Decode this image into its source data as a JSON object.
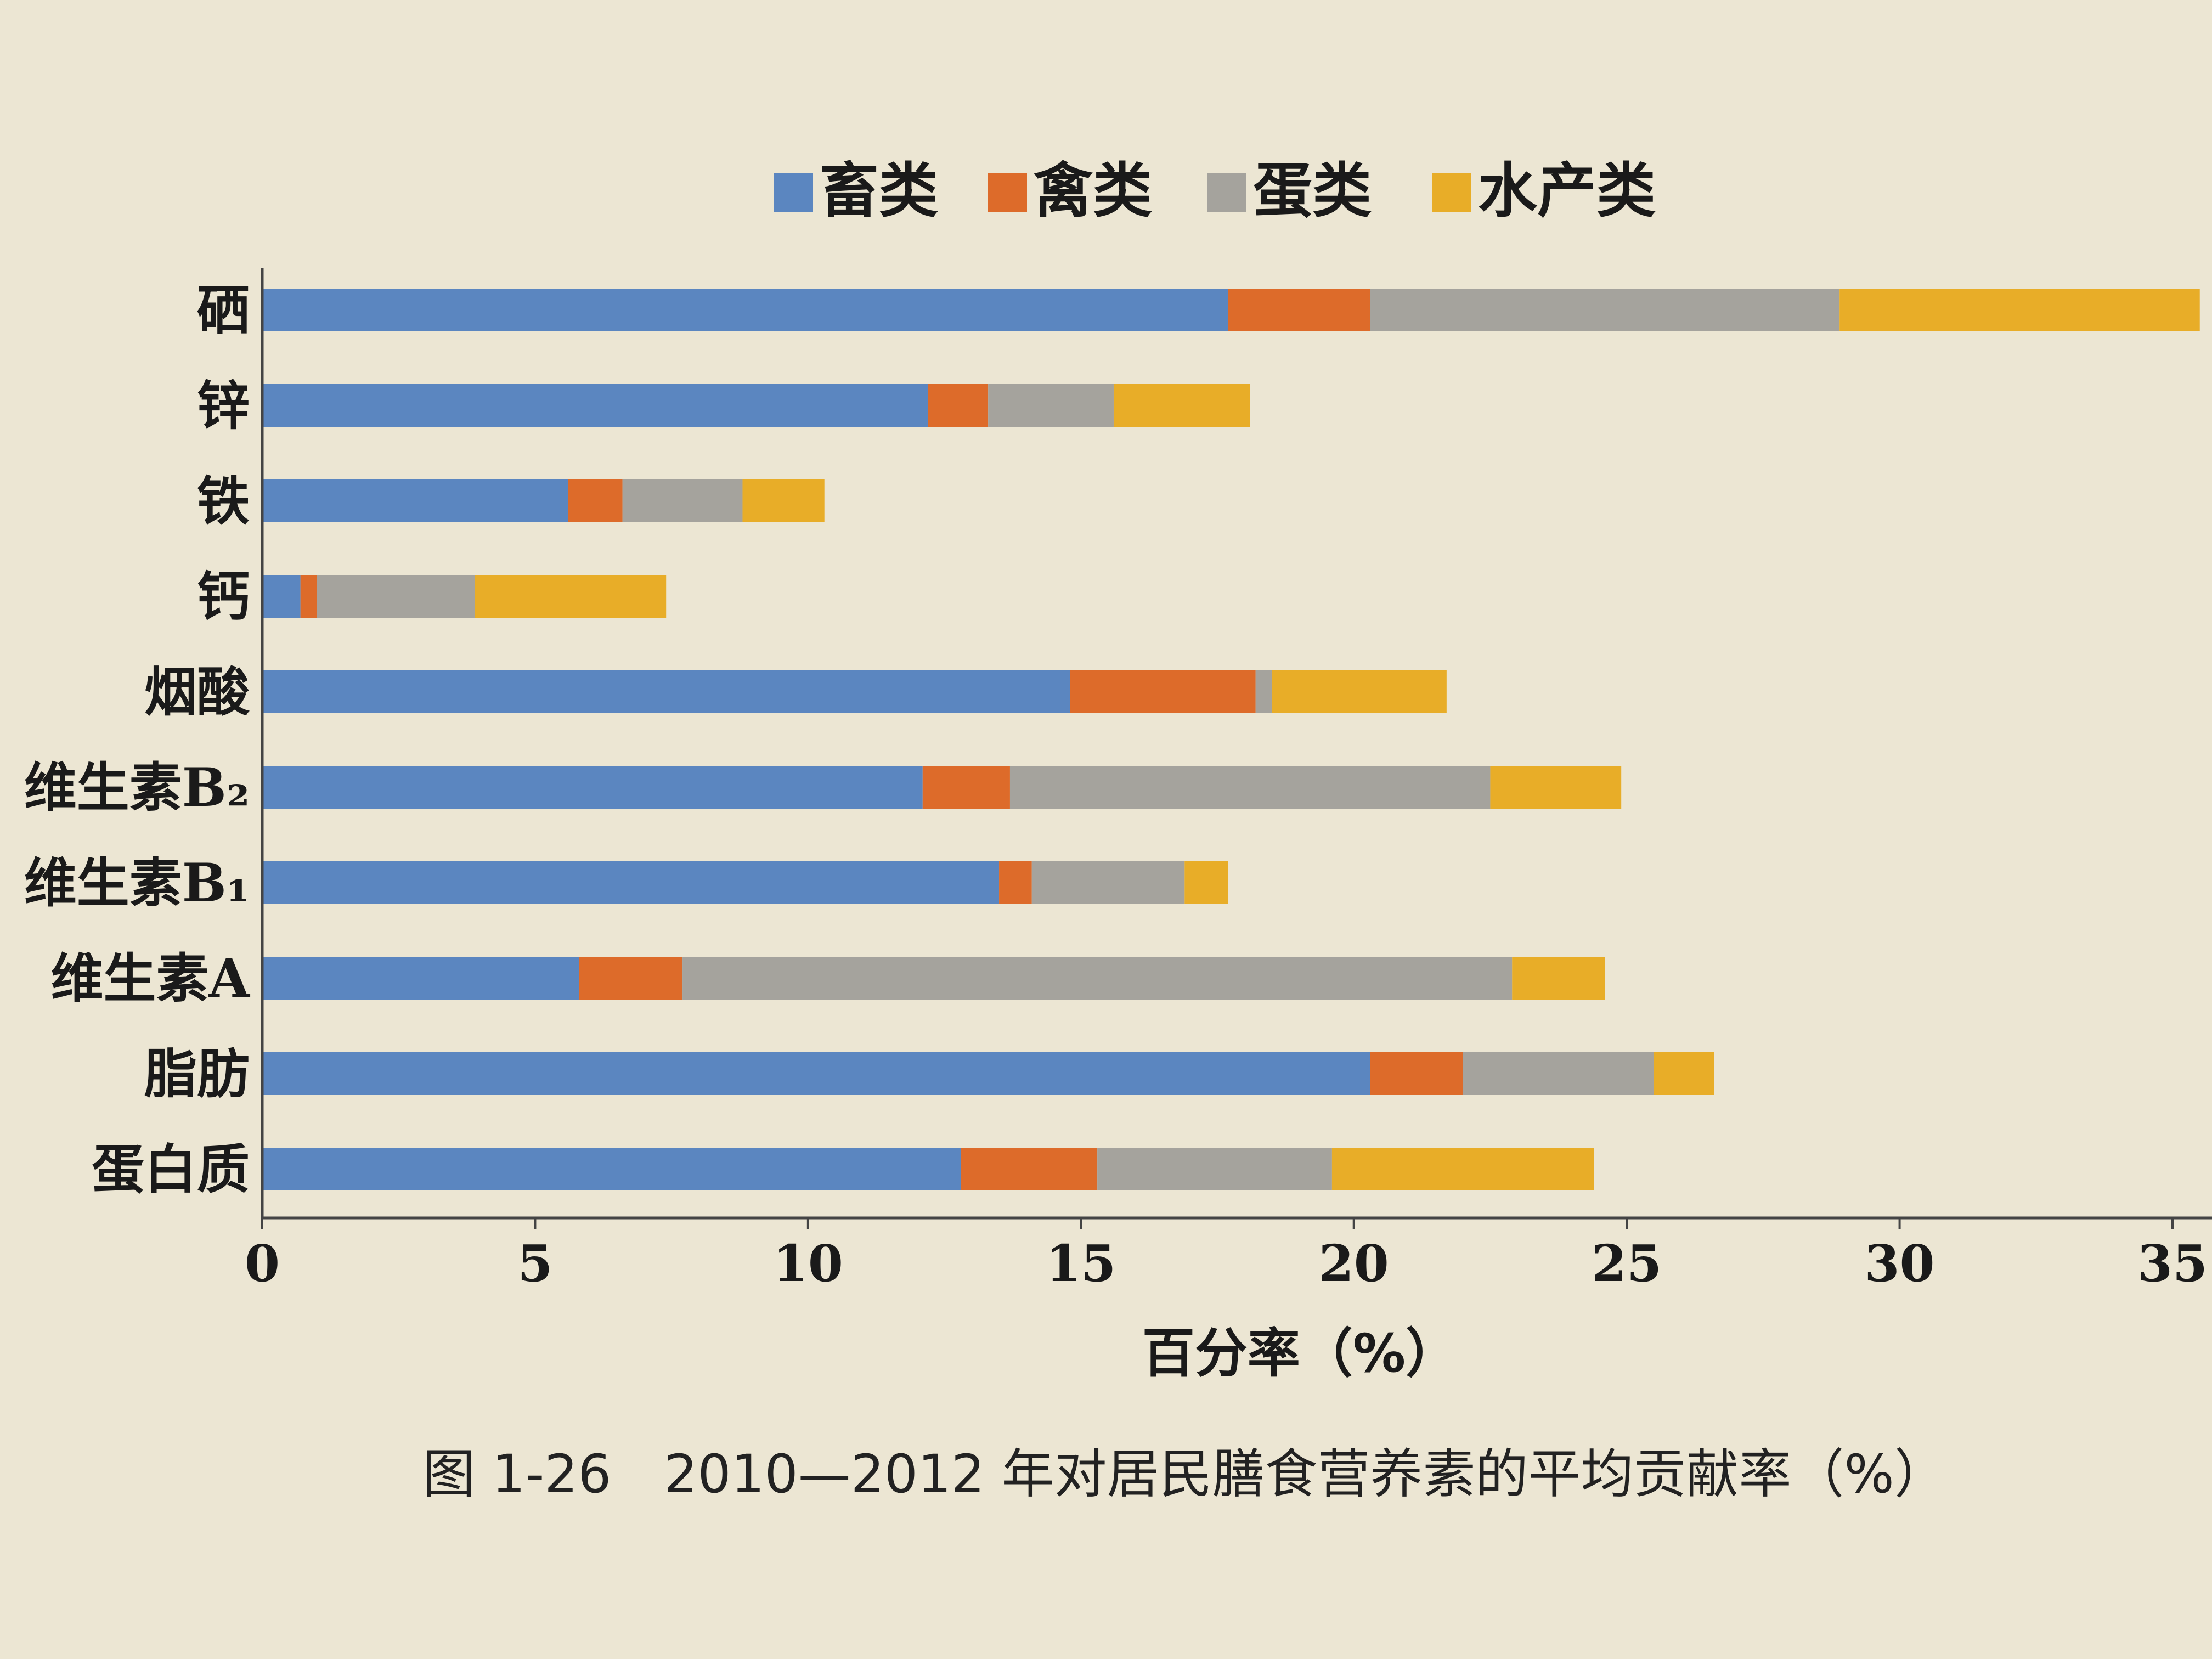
{
  "chart_data": {
    "type": "bar",
    "orientation": "horizontal",
    "stacked": true,
    "categories": [
      "硒",
      "锌",
      "铁",
      "钙",
      "烟酸",
      "维生素B₂",
      "维生素B₁",
      "维生素A",
      "脂肪",
      "蛋白质"
    ],
    "series": [
      {
        "name": "畜类",
        "color": "#5b86c0",
        "values": [
          17.7,
          12.2,
          5.6,
          0.7,
          14.8,
          12.1,
          13.5,
          5.8,
          20.3,
          12.8
        ]
      },
      {
        "name": "禽类",
        "color": "#dd6b2a",
        "values": [
          2.6,
          1.1,
          1.0,
          0.3,
          3.4,
          1.6,
          0.6,
          1.9,
          1.7,
          2.5
        ]
      },
      {
        "name": "蛋类",
        "color": "#a5a39d",
        "values": [
          8.6,
          2.3,
          2.2,
          2.9,
          0.3,
          8.8,
          2.8,
          15.2,
          3.5,
          4.3
        ]
      },
      {
        "name": "水产类",
        "color": "#e8ad28",
        "values": [
          6.6,
          2.5,
          1.5,
          3.5,
          3.2,
          2.4,
          0.8,
          1.7,
          1.1,
          4.8
        ]
      }
    ],
    "xlabel": "百分率（%）",
    "xlim": [
      0,
      35
    ],
    "xticks": [
      "0",
      "5",
      "10",
      "15",
      "20",
      "25",
      "30",
      "35"
    ],
    "legend_position": "top",
    "grid": false
  },
  "caption": "图 1-26　2010—2012 年对居民膳食营养素的平均贡献率（%）"
}
